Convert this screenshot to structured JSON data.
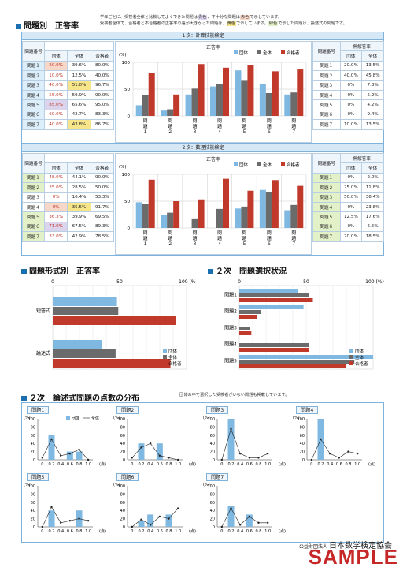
{
  "title": "問題別　正答率",
  "notes": {
    "n1a": "学年ごとに、受検者全体と比較してよくできた問題は",
    "n1b": "青色",
    "n1c": "、不十分な問題は",
    "n1d": "赤色",
    "n1e": "で示しています。",
    "n2a": "受検者全体で、合格者と不合格者の正答率の差が大きかった問題は、",
    "n2b": "黄色",
    "n2c": "で示しています。",
    "n2d": "緑色",
    "n2e": "で示した問題は、論述式の問題です。"
  },
  "colors": {
    "group": "#7fb8e0",
    "all": "#6b6b6b",
    "pass": "#c0392b",
    "blue_cell": "#dcd3ec",
    "red_cell": "#f6d7c8",
    "yellow": "#f7e58a",
    "green": "#e3f1c8"
  },
  "sec1": {
    "title": "１次：計算技能検定",
    "rate_label": "正答率",
    "nores_label": "無解答率",
    "headers": [
      "問題番号",
      "団体",
      "全体",
      "合格者"
    ],
    "nores_headers": [
      "問題番号",
      "団体",
      "全体"
    ],
    "unit": "(%)",
    "rows": [
      {
        "q": "問題１",
        "g": "20.0%",
        "a": "39.6%",
        "p": "80.0%",
        "gv": 20,
        "av": 39.6,
        "pv": 80,
        "gs": "red"
      },
      {
        "q": "問題２",
        "g": "10.0%",
        "a": "12.5%",
        "p": "40.0%",
        "gv": 10,
        "av": 12.5,
        "pv": 40,
        "gs": "redtext"
      },
      {
        "q": "問題３",
        "g": "40.0%",
        "a": "51.0%",
        "p": "96.7%",
        "gv": 40,
        "av": 51,
        "pv": 96.7,
        "gs": "redtext",
        "as": "yellow"
      },
      {
        "q": "問題４",
        "g": "55.0%",
        "a": "59.9%",
        "p": "90.0%",
        "gv": 55,
        "av": 59.9,
        "pv": 90,
        "gs": "redtext"
      },
      {
        "q": "問題５",
        "g": "85.0%",
        "a": "65.6%",
        "p": "95.0%",
        "gv": 85,
        "av": 65.6,
        "pv": 95,
        "gs": "blue"
      },
      {
        "q": "問題６",
        "g": "60.0%",
        "a": "42.7%",
        "p": "83.3%",
        "gv": 60,
        "av": 42.7,
        "pv": 83.3,
        "gs": "redtext"
      },
      {
        "q": "問題７",
        "g": "40.0%",
        "a": "43.8%",
        "p": "86.7%",
        "gv": 40,
        "av": 43.8,
        "pv": 86.7,
        "gs": "redtext",
        "as": "yellow"
      }
    ],
    "nores": [
      {
        "q": "問題１",
        "g": "20.0%",
        "a": "13.5%"
      },
      {
        "q": "問題２",
        "g": "40.0%",
        "a": "45.8%"
      },
      {
        "q": "問題３",
        "g": "0%",
        "a": "7.3%"
      },
      {
        "q": "問題４",
        "g": "0%",
        "a": "5.2%"
      },
      {
        "q": "問題５",
        "g": "0%",
        "a": "4.2%"
      },
      {
        "q": "問題６",
        "g": "0%",
        "a": "9.4%"
      },
      {
        "q": "問題７",
        "g": "10.0%",
        "a": "13.5%"
      }
    ],
    "xlabels": [
      "問題１",
      "問題２",
      "問題３",
      "問題４",
      "問題５",
      "問題６",
      "問題７"
    ],
    "yticks": [
      "100",
      "50",
      "0"
    ]
  },
  "sec2": {
    "title": "２次：数理技能検定",
    "rate_label": "正答率",
    "nores_label": "無解答率",
    "headers": [
      "問題番号",
      "団体",
      "全体",
      "合格者"
    ],
    "nores_headers": [
      "問題番号",
      "団体",
      "全体"
    ],
    "unit": "(%)",
    "rows": [
      {
        "q": "問題１",
        "g": "48.0%",
        "a": "44.1%",
        "p": "90.0%",
        "gv": 48,
        "av": 44.1,
        "pv": 90,
        "gs": "redtext"
      },
      {
        "q": "問題２",
        "g": "25.0%",
        "a": "28.5%",
        "p": "50.0%",
        "gv": 25,
        "av": 28.5,
        "pv": 50,
        "gs": "redtext"
      },
      {
        "q": "問題３",
        "g": "0%",
        "a": "16.4%",
        "p": "53.3%",
        "gv": 0,
        "av": 16.4,
        "pv": 53.3,
        "gs": "redtext"
      },
      {
        "q": "問題４",
        "g": "0%",
        "a": "35.5%",
        "p": "91.7%",
        "gv": 0,
        "av": 35.5,
        "pv": 91.7,
        "gs": "red",
        "as": "yellow"
      },
      {
        "q": "問題５",
        "g": "36.3%",
        "a": "39.9%",
        "p": "69.5%",
        "gv": 36.3,
        "av": 39.9,
        "pv": 69.5,
        "gs": "redtext"
      },
      {
        "q": "問題６",
        "g": "71.0%",
        "a": "67.5%",
        "p": "89.3%",
        "gv": 71,
        "av": 67.5,
        "pv": 89.3,
        "gs": "blue"
      },
      {
        "q": "問題７",
        "g": "33.0%",
        "a": "42.9%",
        "p": "78.5%",
        "gv": 33,
        "av": 42.9,
        "pv": 78.5,
        "gs": "redtext"
      }
    ],
    "nores": [
      {
        "q": "問題１",
        "g": "0%",
        "a": "2.0%"
      },
      {
        "q": "問題２",
        "g": "25.0%",
        "a": "11.8%"
      },
      {
        "q": "問題３",
        "g": "50.0%",
        "a": "36.4%"
      },
      {
        "q": "問題４",
        "g": "0%",
        "a": "23.8%"
      },
      {
        "q": "問題５",
        "g": "12.5%",
        "a": "17.6%"
      },
      {
        "q": "問題６",
        "g": "0%",
        "a": "6.5%"
      },
      {
        "q": "問題７",
        "g": "20.0%",
        "a": "18.5%"
      }
    ],
    "xlabels": [
      "問題１",
      "問題２",
      "問題３",
      "問題４",
      "問題５",
      "問題６",
      "問題７"
    ],
    "yticks": [
      "100",
      "50",
      "0"
    ]
  },
  "legend": [
    "団体",
    "全体",
    "合格者"
  ],
  "format": {
    "title": "問題形式別　正答率",
    "axis0": "0",
    "axis50": "50",
    "axis100": "100 (%)",
    "cats": [
      "短答式",
      "論述式"
    ],
    "values": [
      {
        "g": 48,
        "a": 49,
        "p": 92
      },
      {
        "g": 37,
        "a": 47,
        "p": 88
      }
    ]
  },
  "select": {
    "title": "２次　問題選択状況",
    "cats": [
      "問題1",
      "問題2",
      "問題3",
      "問題4",
      "問題5"
    ],
    "values": [
      {
        "g": 44,
        "a": 52,
        "p": 55
      },
      {
        "g": 48,
        "a": 16,
        "p": 13
      },
      {
        "g": 0,
        "a": 8,
        "p": 9
      },
      {
        "g": 0,
        "a": 52,
        "p": 52
      },
      {
        "g": 100,
        "a": 86,
        "p": 80
      }
    ]
  },
  "dist": {
    "title": "２次　論述式問題の点数の分布",
    "note": "団体の中で選択した受検者がいない問題も掲載しています。",
    "legend": [
      "団体",
      "全体"
    ],
    "unit": "(%)",
    "yticks": [
      "100",
      "80",
      "60",
      "40",
      "20",
      "0"
    ],
    "xticks": [
      "0",
      "0.2",
      "0.4",
      "0.6",
      "0.8",
      "1.0"
    ],
    "xunit": "(点)",
    "problems": [
      {
        "name": "問題1",
        "bars": [
          0,
          60,
          0,
          20,
          20,
          0
        ],
        "line": [
          5,
          50,
          10,
          15,
          25,
          0
        ]
      },
      {
        "name": "問題2",
        "bars": [
          0,
          40,
          0,
          40,
          0,
          0
        ],
        "line": [
          5,
          30,
          40,
          10,
          5,
          0
        ]
      },
      {
        "name": "問題3",
        "bars": [
          0,
          100,
          0,
          0,
          0,
          0
        ],
        "line": [
          0,
          75,
          15,
          5,
          5,
          15
        ]
      },
      {
        "name": "問題4",
        "bars": [
          0,
          100,
          0,
          0,
          0,
          0
        ],
        "line": [
          0,
          50,
          15,
          5,
          20,
          15
        ]
      },
      {
        "name": "問題5",
        "bars": [
          0,
          40,
          0,
          0,
          40,
          0
        ],
        "line": [
          0,
          48,
          10,
          15,
          20,
          15
        ]
      },
      {
        "name": "問題6",
        "bars": [
          0,
          15,
          30,
          0,
          30,
          0
        ],
        "line": [
          0,
          18,
          5,
          25,
          20,
          45
        ]
      },
      {
        "name": "問題7",
        "bars": [
          0,
          50,
          0,
          30,
          0,
          0
        ],
        "line": [
          0,
          45,
          5,
          25,
          10,
          10
        ]
      }
    ]
  },
  "footer": {
    "org_prefix": "公益財団法人",
    "org": "日本数学検定協会"
  },
  "watermark": "SAMPLE"
}
